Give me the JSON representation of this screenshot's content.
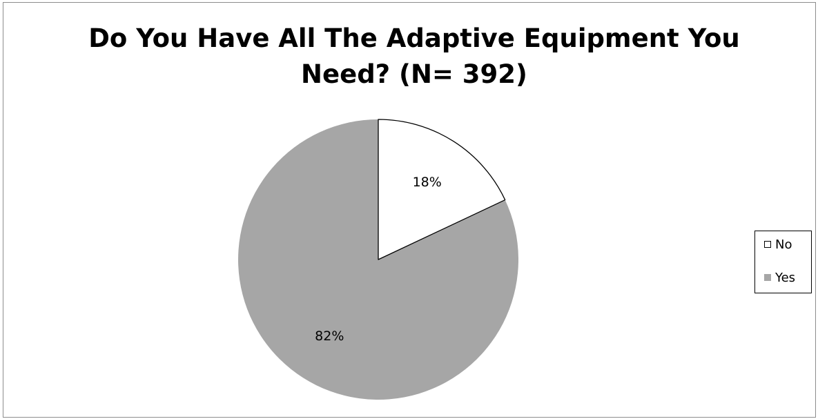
{
  "chart_data": {
    "type": "pie",
    "title_lines": [
      "Do You Have All The Adaptive Equipment You",
      "Need? (N= 392)"
    ],
    "categories": [
      "No",
      "Yes"
    ],
    "values": [
      18,
      82
    ],
    "labels": [
      "18%",
      "82%"
    ],
    "colors": [
      "#ffffff",
      "#a6a6a6"
    ],
    "legend_position": "right"
  }
}
